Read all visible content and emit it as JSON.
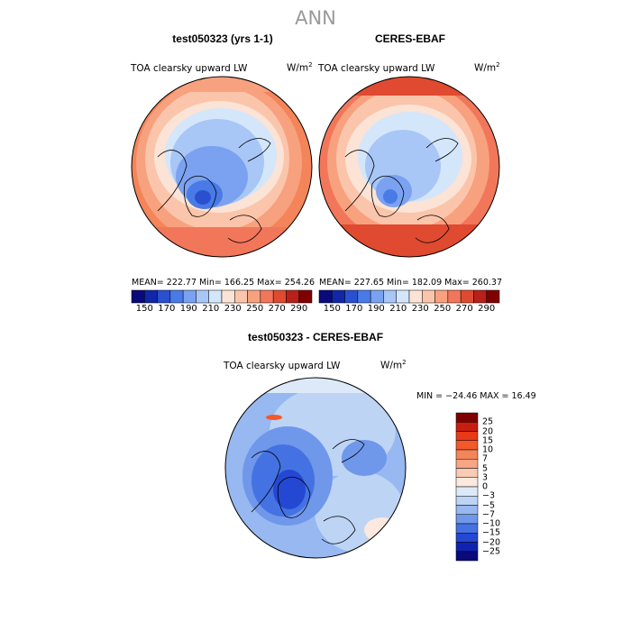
{
  "page": {
    "title": "ANN"
  },
  "panels": [
    {
      "title": "test050323 (yrs 1-1)",
      "variable": "TOA clearsky upward LW",
      "units": "W/m",
      "units_exp": "2",
      "stats": "MEAN= 222.77   Min= 166.25   Max= 254.26"
    },
    {
      "title": "CERES-EBAF",
      "variable": "TOA clearsky upward LW",
      "units": "W/m",
      "units_exp": "2",
      "stats": "MEAN= 227.65   Min= 182.09   Max= 260.37"
    }
  ],
  "diff_panel": {
    "title": "test050323 - CERES-EBAF",
    "variable": "TOA clearsky upward LW",
    "units": "W/m",
    "units_exp": "2",
    "stats": "MIN = −24.46  MAX =  16.49"
  },
  "chart_data": [
    {
      "type": "heatmap",
      "projection": "north polar stereographic",
      "title": "test050323 (yrs 1-1)",
      "variable": "TOA clearsky upward LW",
      "units": "W/m^2",
      "mean": 222.77,
      "min": 166.25,
      "max": 254.26,
      "colorbar_levels": [
        150,
        170,
        190,
        210,
        230,
        250,
        270,
        290
      ],
      "colorbar_tick_labels": [
        "150",
        "170",
        "190",
        "210",
        "230",
        "250",
        "270",
        "290"
      ],
      "colorbar_colors": [
        "#0a0a7a",
        "#1226a8",
        "#2a50d0",
        "#4a7ae6",
        "#7aa2f0",
        "#a8c6f6",
        "#d4e6fa",
        "#fbe3d6",
        "#fbc5ab",
        "#f8a17f",
        "#f2765a",
        "#e04a30",
        "#b8201a",
        "#7e0000"
      ]
    },
    {
      "type": "heatmap",
      "projection": "north polar stereographic",
      "title": "CERES-EBAF",
      "variable": "TOA clearsky upward LW",
      "units": "W/m^2",
      "mean": 227.65,
      "min": 182.09,
      "max": 260.37,
      "colorbar_levels": [
        150,
        170,
        190,
        210,
        230,
        250,
        270,
        290
      ],
      "colorbar_tick_labels": [
        "150",
        "170",
        "190",
        "210",
        "230",
        "250",
        "270",
        "290"
      ],
      "colorbar_colors": [
        "#0a0a7a",
        "#1226a8",
        "#2a50d0",
        "#4a7ae6",
        "#7aa2f0",
        "#a8c6f6",
        "#d4e6fa",
        "#fbe3d6",
        "#fbc5ab",
        "#f8a17f",
        "#f2765a",
        "#e04a30",
        "#b8201a",
        "#7e0000"
      ]
    },
    {
      "type": "heatmap",
      "projection": "north polar stereographic",
      "title": "test050323 - CERES-EBAF",
      "variable": "TOA clearsky upward LW",
      "units": "W/m^2",
      "min": -24.46,
      "max": 16.49,
      "colorbar_levels": [
        25,
        20,
        15,
        10,
        7,
        5,
        3,
        0,
        -3,
        -5,
        -7,
        -10,
        -15,
        -20,
        -25
      ],
      "colorbar_tick_labels": [
        "25",
        "20",
        "15",
        "10",
        "7",
        "5",
        "3",
        "0",
        "−3",
        "−5",
        "−7",
        "−10",
        "−15",
        "−20",
        "−25"
      ],
      "colorbar_colors": [
        "#7e0000",
        "#c81e10",
        "#e63a18",
        "#f25a2a",
        "#f4845a",
        "#f6a585",
        "#f9cbb4",
        "#fbe8de",
        "#dde9f8",
        "#bdd4f4",
        "#97b8f0",
        "#6f97ea",
        "#4572e2",
        "#2448d2",
        "#1023b0",
        "#0a0a7a"
      ]
    }
  ]
}
